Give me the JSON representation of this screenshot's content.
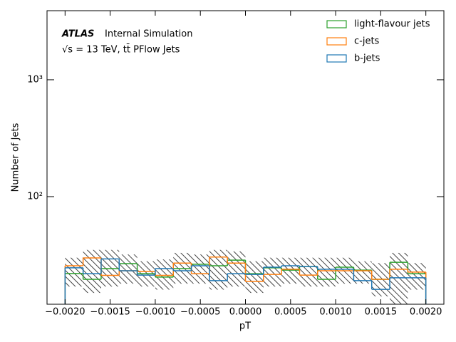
{
  "chart_data": {
    "type": "step-histogram",
    "annotations": [
      "ATLAS",
      "Internal Simulation",
      "√s = 13 TeV, tt̄ PFlow Jets"
    ],
    "xlabel": "pT",
    "ylabel": "Number of Jets",
    "bins": [
      -0.002,
      -0.0018,
      -0.0016,
      -0.0014,
      -0.0012,
      -0.001,
      -0.0008,
      -0.0006,
      -0.0004,
      -0.0002,
      0,
      0.0002,
      0.0004,
      0.0006,
      0.0008,
      0.001,
      0.0012,
      0.0014,
      0.0016,
      0.0018,
      0.002
    ],
    "series": [
      {
        "name": "light-flavour jets",
        "color": "#2ca02c",
        "values": [
          22,
          19.6,
          24.2,
          26.7,
          21.9,
          20.5,
          24.2,
          26.4,
          25.6,
          28.6,
          21.9,
          24.6,
          23.5,
          25.2,
          19.6,
          24.9,
          23.5,
          19.6,
          27.4,
          21.9
        ]
      },
      {
        "name": "c-jets",
        "color": "#ff7f0e",
        "values": [
          25.6,
          29.9,
          21.2,
          23.2,
          22.9,
          21.2,
          27.0,
          21.9,
          30.4,
          27.0,
          18.8,
          21.6,
          23.9,
          21.3,
          23.2,
          23.2,
          23.2,
          19.6,
          23.9,
          22.6
        ]
      },
      {
        "name": "b-jets",
        "color": "#1f77b4",
        "values": [
          24.6,
          21.9,
          29.3,
          23.2,
          21.3,
          24.2,
          23.2,
          25.6,
          19.1,
          21.9,
          21.6,
          24.9,
          25.6,
          25.2,
          23.9,
          23.9,
          19.1,
          16.1,
          20.2,
          20.2
        ]
      }
    ],
    "band": {
      "low": [
        17,
        15,
        17,
        18,
        17,
        16,
        18,
        18,
        16,
        17,
        15,
        17,
        18,
        17,
        17,
        18,
        18,
        14,
        12,
        16
      ],
      "high": [
        30,
        35,
        35,
        32,
        28,
        29,
        33,
        32,
        35,
        34,
        28,
        30,
        30,
        30,
        30,
        30,
        28,
        27,
        33,
        27
      ]
    },
    "xlim": [
      -0.0022,
      0.0022
    ],
    "xticks": [
      {
        "value": -0.002,
        "label": "−0.0020"
      },
      {
        "value": -0.0015,
        "label": "−0.0015"
      },
      {
        "value": -0.001,
        "label": "−0.0010"
      },
      {
        "value": -0.0005,
        "label": "−0.0005"
      },
      {
        "value": 0,
        "label": "0.0000"
      },
      {
        "value": 0.0005,
        "label": "0.0005"
      },
      {
        "value": 0.001,
        "label": "0.0010"
      },
      {
        "value": 0.0015,
        "label": "0.0015"
      },
      {
        "value": 0.002,
        "label": "0.0020"
      }
    ],
    "ylim": [
      12,
      3900
    ],
    "yscale": "log",
    "yticks": [
      {
        "value": 100,
        "label": "10²"
      },
      {
        "value": 1000,
        "label": "10³"
      }
    ],
    "legend": "upper right"
  }
}
